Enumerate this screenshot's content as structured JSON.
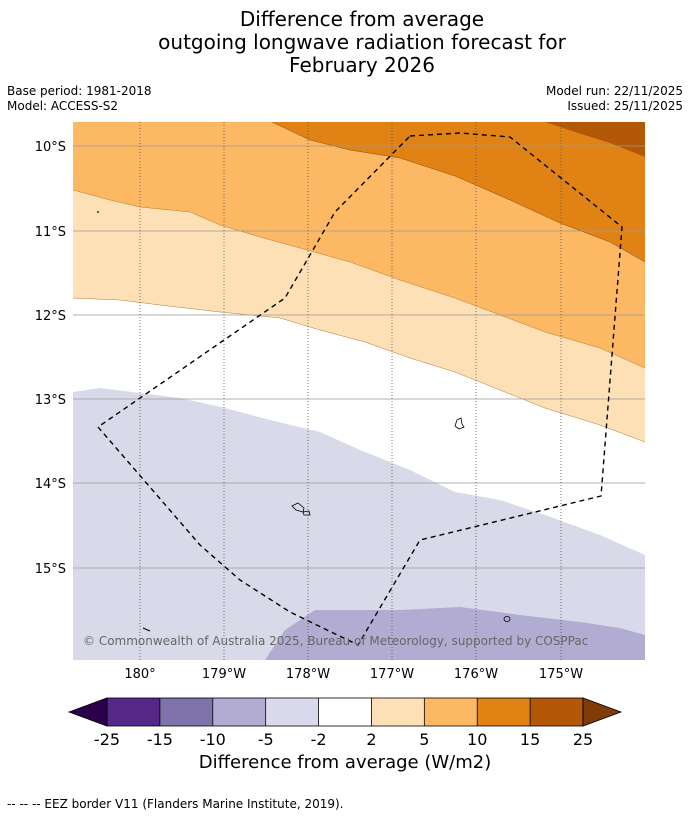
{
  "title": {
    "line1": "Difference from average",
    "line2": "outgoing longwave radiation forecast for",
    "line3": "February 2026"
  },
  "meta": {
    "base_period": "Base period: 1981-2018",
    "model": "Model: ACCESS-S2",
    "model_run": "Model run: 22/11/2025",
    "issued": "Issued: 25/11/2025"
  },
  "map": {
    "lat_labels": [
      "10°S",
      "11°S",
      "12°S",
      "13°S",
      "14°S",
      "15°S"
    ],
    "lon_labels": [
      "180°",
      "179°W",
      "178°W",
      "177°W",
      "176°W",
      "175°W"
    ],
    "copyright": "© Commonwealth of Australia 2025, Bureau of Meteorology, supported by COSPPac",
    "colors": {
      "c_15_25": "#b35806",
      "c_10_15": "#e08214",
      "c_5_10": "#fdb863",
      "c_2_5": "#fee0b6",
      "c_m2_2": "#ffffff",
      "c_m5_m2": "#d8daea",
      "c_m10_m5": "#b2abd2",
      "eez_line": "#000000"
    }
  },
  "colorbar": {
    "ticks": [
      "-25",
      "-15",
      "-10",
      "-5",
      "-2",
      "2",
      "5",
      "10",
      "15",
      "25"
    ],
    "colors": [
      "#2d004b",
      "#542788",
      "#8073ac",
      "#b2abd2",
      "#d8daeb",
      "#ffffff",
      "#fee0b6",
      "#fdb863",
      "#e08214",
      "#b35806",
      "#7f3b08"
    ],
    "label": "Difference from average (W/m2)"
  },
  "footnote": "--  --  -- EEZ border V11 (Flanders Marine Institute, 2019)."
}
